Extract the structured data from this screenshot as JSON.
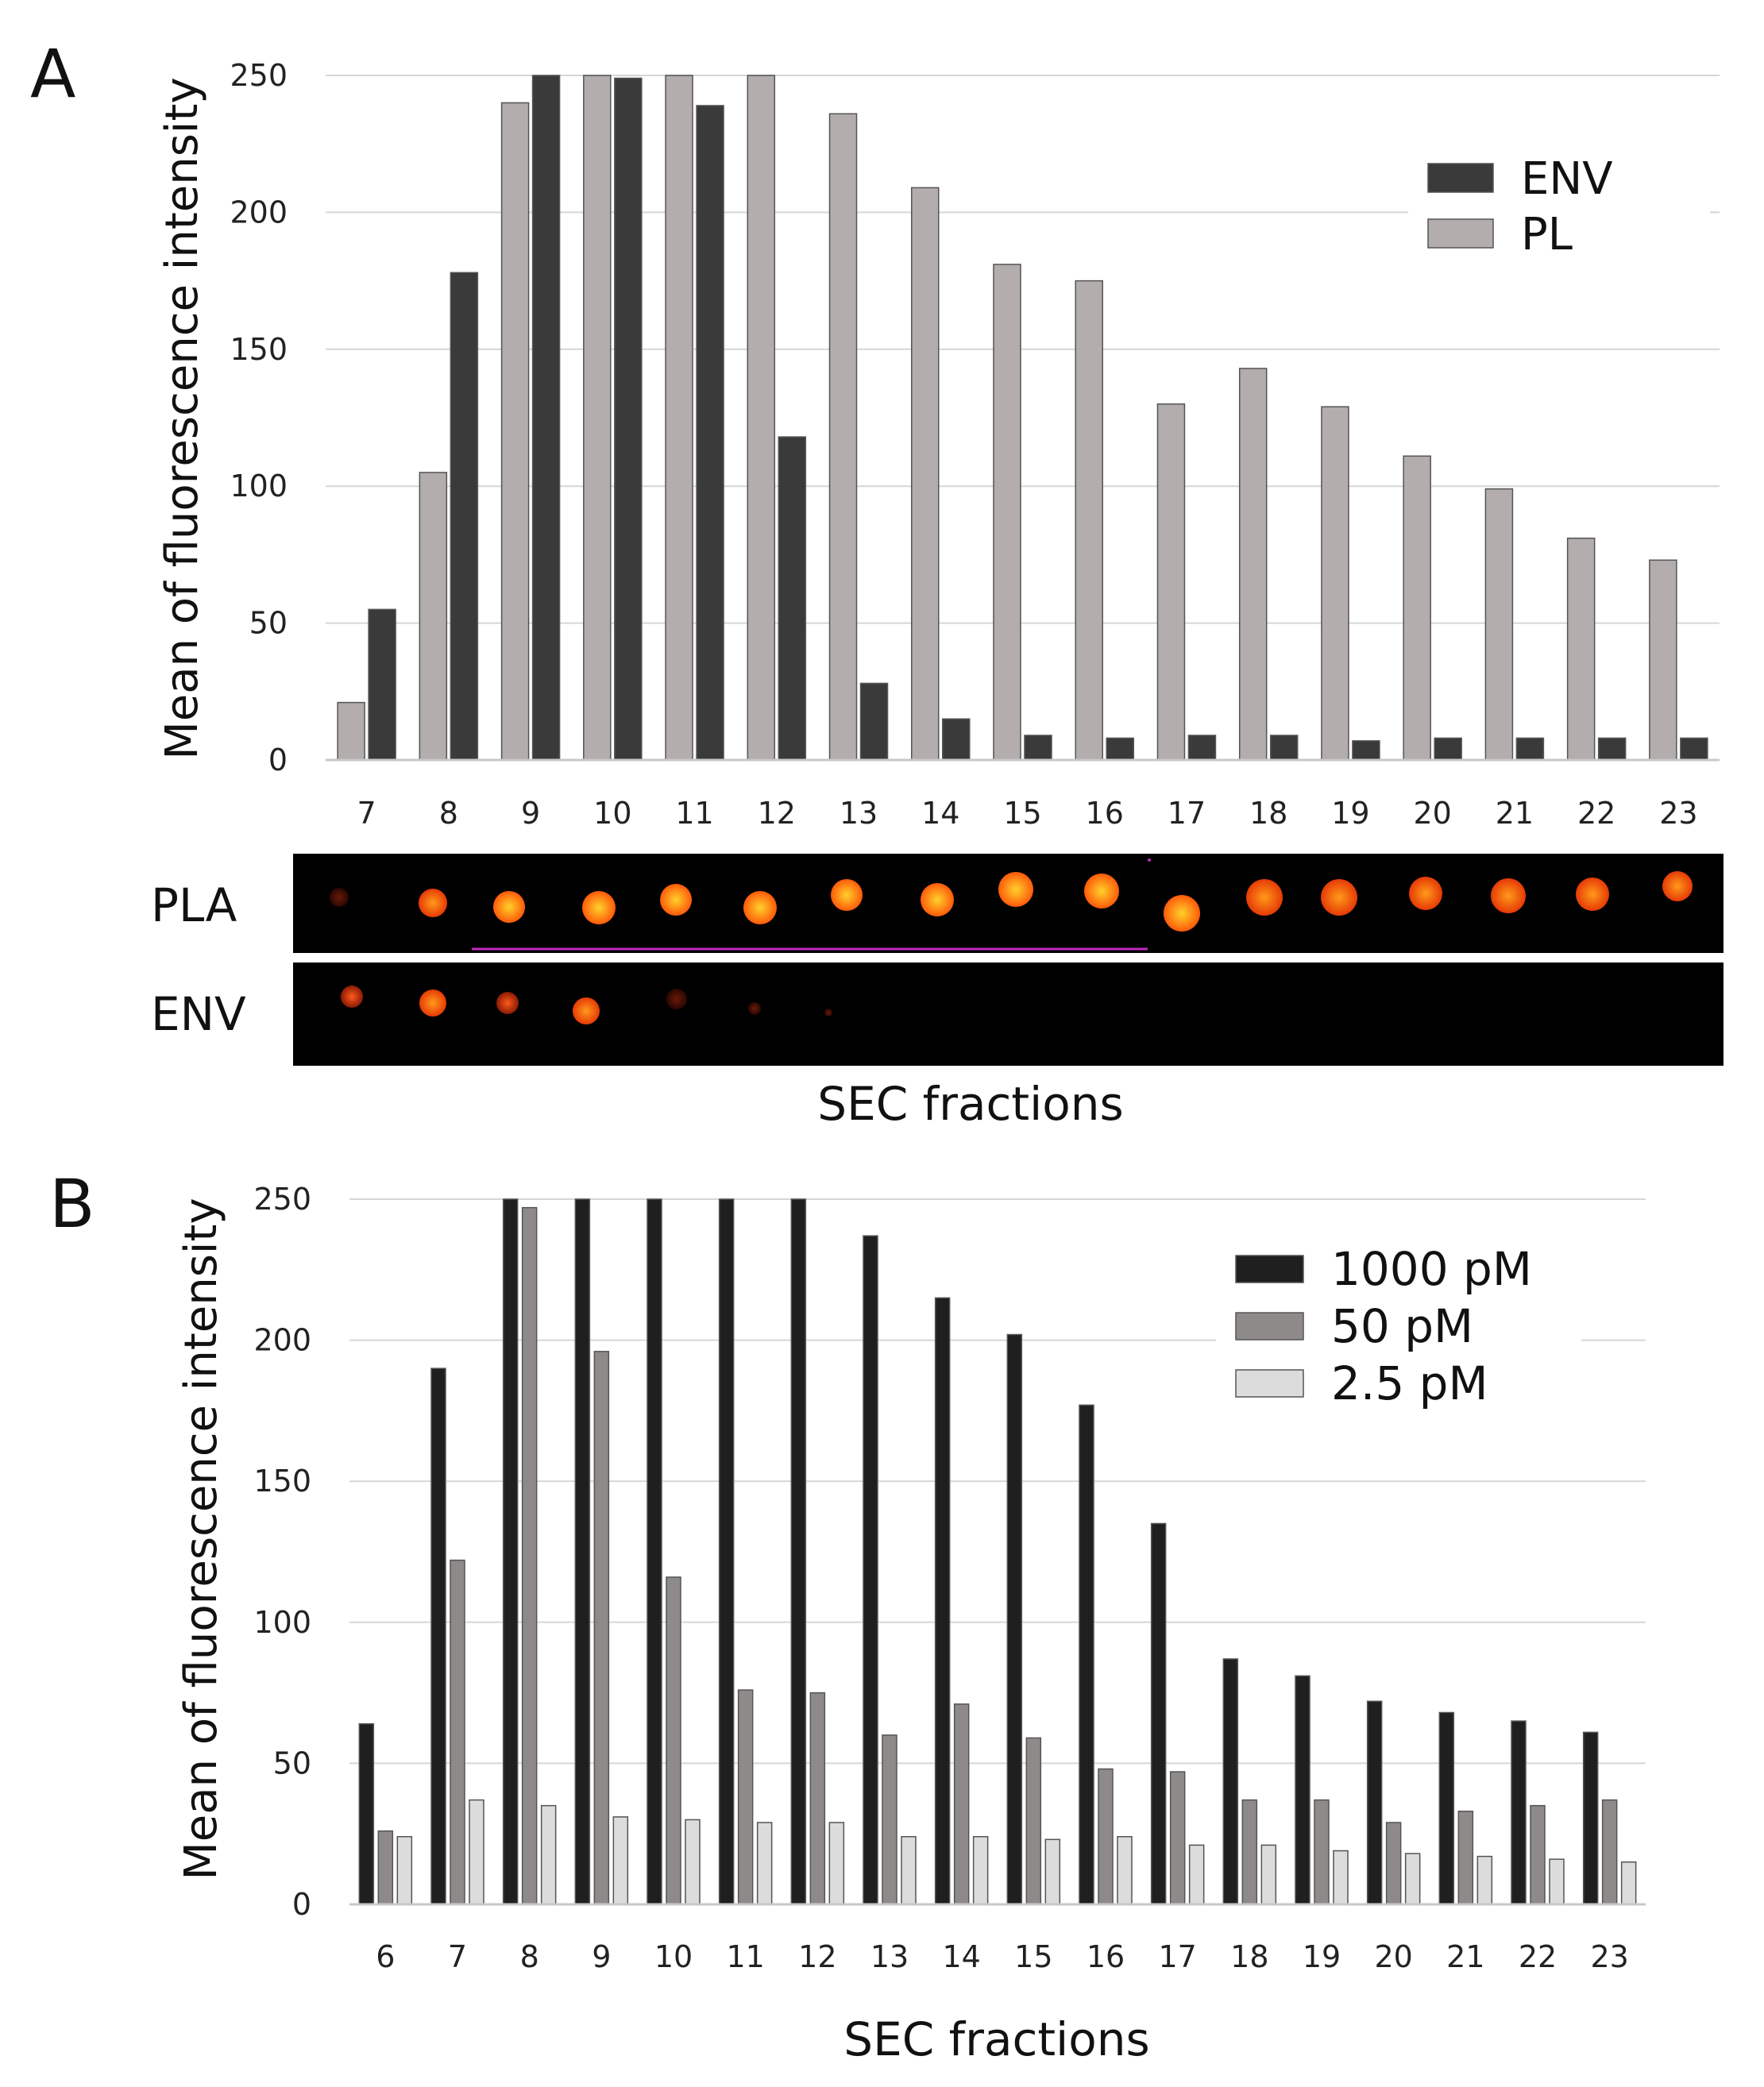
{
  "figure": {
    "panel_a_label": "A",
    "panel_b_label": "B",
    "blot_row_labels": [
      "PLA",
      "ENV"
    ],
    "blot_xlabel": "SEC fractions"
  },
  "colors": {
    "ENV": "#3a3a3a",
    "PL": "#b3adad",
    "1000 pM": "#1f1f1f",
    "50 pM": "#8f8a8a",
    "2.5 pM": "#dcdcdc",
    "grid": "#d6d6d6",
    "axis": "#c8c8c8"
  },
  "chart_data": [
    {
      "panel": "A",
      "type": "bar",
      "title": "",
      "xlabel": "",
      "ylabel": "Mean of fluorescence intensity",
      "ylim": [
        0,
        250
      ],
      "yticks": [
        0,
        50,
        100,
        150,
        200,
        250
      ],
      "grid": true,
      "legend_position": "top-right",
      "categories": [
        "7",
        "8",
        "9",
        "10",
        "11",
        "12",
        "13",
        "14",
        "15",
        "16",
        "17",
        "18",
        "19",
        "20",
        "21",
        "22",
        "23"
      ],
      "series": [
        {
          "name": "PL",
          "values": [
            21,
            105,
            240,
            250,
            250,
            250,
            236,
            209,
            181,
            175,
            130,
            143,
            129,
            111,
            99,
            81,
            73
          ]
        },
        {
          "name": "ENV",
          "values": [
            55,
            178,
            250,
            249,
            239,
            118,
            28,
            15,
            9,
            8,
            9,
            9,
            7,
            8,
            8,
            8,
            8
          ]
        }
      ],
      "legend_order": [
        "ENV",
        "PL"
      ]
    },
    {
      "panel": "B",
      "type": "bar",
      "title": "",
      "xlabel": "SEC fractions",
      "ylabel": "Mean of fluorescence intensity",
      "ylim": [
        0,
        250
      ],
      "yticks": [
        0,
        50,
        100,
        150,
        200,
        250
      ],
      "grid": true,
      "legend_position": "top-right",
      "categories": [
        "6",
        "7",
        "8",
        "9",
        "10",
        "11",
        "12",
        "13",
        "14",
        "15",
        "16",
        "17",
        "18",
        "19",
        "20",
        "21",
        "22",
        "23"
      ],
      "series": [
        {
          "name": "1000 pM",
          "values": [
            64,
            190,
            250,
            250,
            250,
            250,
            250,
            237,
            215,
            202,
            177,
            135,
            87,
            81,
            72,
            68,
            65,
            61
          ]
        },
        {
          "name": "50 pM",
          "values": [
            26,
            122,
            247,
            196,
            116,
            76,
            75,
            60,
            71,
            59,
            48,
            47,
            37,
            37,
            29,
            33,
            35,
            37
          ]
        },
        {
          "name": "2.5 pM",
          "values": [
            24,
            37,
            35,
            31,
            30,
            29,
            29,
            24,
            24,
            23,
            24,
            21,
            21,
            19,
            18,
            17,
            16,
            15
          ]
        }
      ],
      "legend_order": [
        "1000 pM",
        "50 pM",
        "2.5 pM"
      ]
    }
  ]
}
